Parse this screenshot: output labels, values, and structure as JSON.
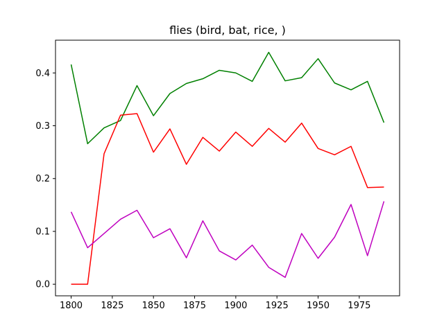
{
  "chart_data": {
    "type": "line",
    "title": "flies (bird, bat, rice, )",
    "xlabel": "",
    "ylabel": "",
    "x": [
      1800,
      1810,
      1820,
      1830,
      1840,
      1850,
      1860,
      1870,
      1880,
      1890,
      1900,
      1910,
      1920,
      1930,
      1940,
      1950,
      1960,
      1970,
      1980,
      1990
    ],
    "xlim": [
      1790.5,
      1999.5
    ],
    "ylim": [
      -0.022,
      0.462
    ],
    "xticks": [
      1800,
      1825,
      1850,
      1875,
      1900,
      1925,
      1950,
      1975
    ],
    "yticks": [
      0.0,
      0.1,
      0.2,
      0.3,
      0.4
    ],
    "ytick_labels": [
      "0.0",
      "0.1",
      "0.2",
      "0.3",
      "0.4"
    ],
    "grid": false,
    "legend": "none",
    "series": [
      {
        "color": "#008000",
        "values": [
          0.416,
          0.266,
          0.296,
          0.31,
          0.376,
          0.319,
          0.361,
          0.38,
          0.389,
          0.405,
          0.4,
          0.384,
          0.439,
          0.385,
          0.391,
          0.427,
          0.381,
          0.368,
          0.384,
          0.306
        ]
      },
      {
        "color": "#ff0000",
        "values": [
          0.0,
          0.0,
          0.247,
          0.32,
          0.323,
          0.25,
          0.294,
          0.227,
          0.278,
          0.252,
          0.288,
          0.261,
          0.295,
          0.269,
          0.305,
          0.257,
          0.245,
          0.261,
          0.183,
          0.184
        ]
      },
      {
        "color": "#bf00bf",
        "values": [
          0.137,
          0.069,
          0.096,
          0.123,
          0.14,
          0.088,
          0.105,
          0.05,
          0.12,
          0.063,
          0.046,
          0.074,
          0.032,
          0.013,
          0.096,
          0.049,
          0.089,
          0.151,
          0.054,
          0.157
        ]
      }
    ]
  }
}
